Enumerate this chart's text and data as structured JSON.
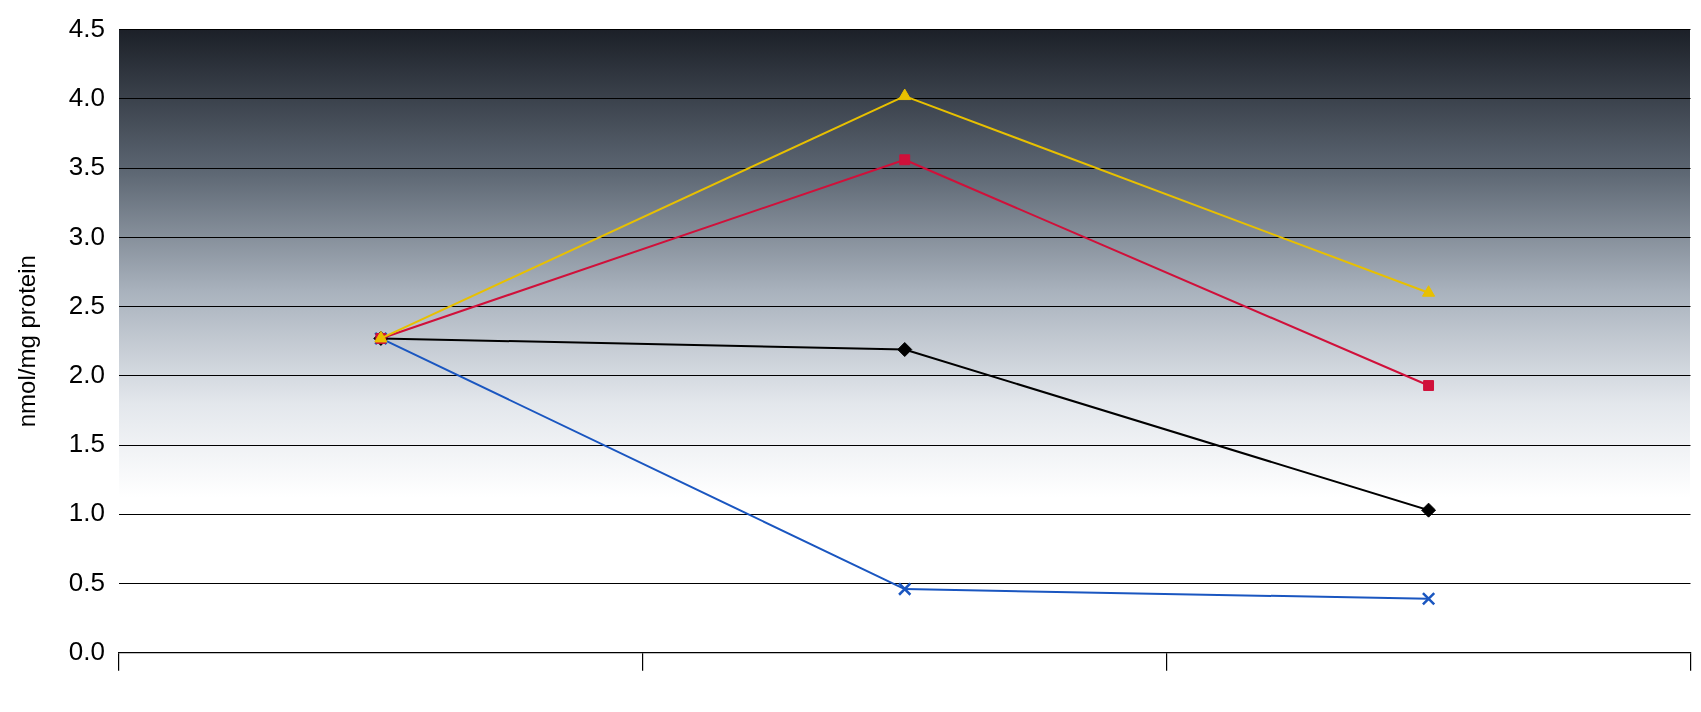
{
  "chart_data": {
    "type": "line",
    "ylabel": "nmol/mg protein",
    "categories": [
      null,
      null,
      null
    ],
    "series": [
      {
        "color": "#e8c000",
        "marker": "triangle",
        "values": [
          2.27,
          4.02,
          2.6
        ]
      },
      {
        "color": "#d0103a",
        "marker": "square",
        "values": [
          2.27,
          3.56,
          1.93
        ]
      },
      {
        "color": "#000000",
        "marker": "diamond",
        "values": [
          2.27,
          2.19,
          1.03
        ]
      },
      {
        "color": "#1a56c0",
        "marker": "cross",
        "values": [
          2.27,
          0.46,
          0.39
        ]
      }
    ],
    "ylim": [
      0,
      4.5
    ],
    "yticks": [
      {
        "value": 0,
        "label": "0.0"
      },
      0.5,
      {
        "value": 1,
        "label": "1.0"
      },
      1.5,
      {
        "value": 2,
        "label": "2.0"
      },
      2.5,
      {
        "value": 3,
        "label": "3.0"
      },
      3.5,
      {
        "value": 4,
        "label": "4.0"
      },
      4.5
    ],
    "grid": "y",
    "legend": false,
    "line_style": "solid"
  }
}
